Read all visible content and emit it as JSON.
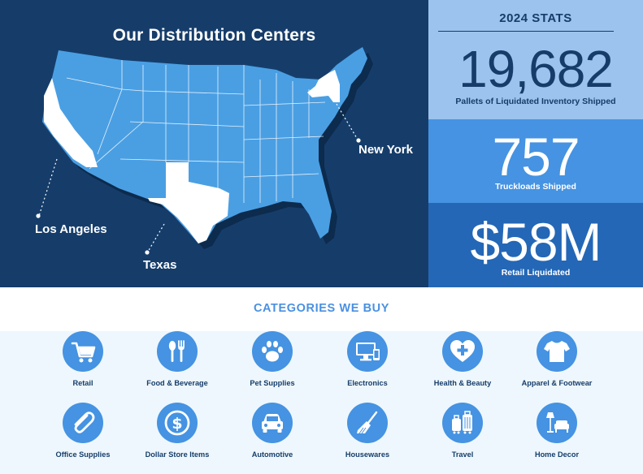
{
  "map": {
    "title": "Our Distribution Centers",
    "cities": {
      "new_york": "New York",
      "los_angeles": "Los Angeles",
      "texas": "Texas"
    },
    "colors": {
      "background": "#163d6a",
      "states": "#4a9fe3",
      "highlight": "#ffffff"
    }
  },
  "stats": {
    "heading": "2024 STATS",
    "items": [
      {
        "value": "19,682",
        "label": "Pallets of Liquidated Inventory Shipped"
      },
      {
        "value": "757",
        "label": "Truckloads Shipped"
      },
      {
        "value": "$58M",
        "label": "Retail Liquidated"
      }
    ],
    "colors": [
      "#9cc3ed",
      "#4593e2",
      "#2467b6"
    ]
  },
  "categories": {
    "title": "CATEGORIES WE BUY",
    "items": [
      {
        "label": "Retail",
        "icon": "shopping-cart-icon"
      },
      {
        "label": "Food & Beverage",
        "icon": "fork-spoon-icon"
      },
      {
        "label": "Pet Supplies",
        "icon": "paw-icon"
      },
      {
        "label": "Electronics",
        "icon": "devices-icon"
      },
      {
        "label": "Health & Beauty",
        "icon": "heart-cross-icon"
      },
      {
        "label": "Apparel & Footwear",
        "icon": "tshirt-icon"
      },
      {
        "label": "Office Supplies",
        "icon": "paperclip-icon"
      },
      {
        "label": "Dollar Store Items",
        "icon": "dollar-icon"
      },
      {
        "label": "Automotive",
        "icon": "car-icon"
      },
      {
        "label": "Housewares",
        "icon": "broom-icon"
      },
      {
        "label": "Travel",
        "icon": "luggage-icon"
      },
      {
        "label": "Home Decor",
        "icon": "lamp-chair-icon"
      }
    ]
  }
}
